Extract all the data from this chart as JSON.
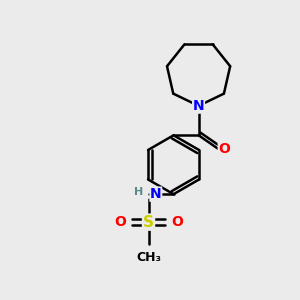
{
  "background_color": "#ebebeb",
  "atom_colors": {
    "N": "#0000ff",
    "O": "#ff0000",
    "S": "#cccc00",
    "C": "#000000",
    "H": "#5a8a8a"
  },
  "bond_color": "#000000",
  "bond_width": 1.8,
  "figsize": [
    3.0,
    3.0
  ],
  "dpi": 100,
  "xlim": [
    0,
    10
  ],
  "ylim": [
    0,
    10
  ]
}
